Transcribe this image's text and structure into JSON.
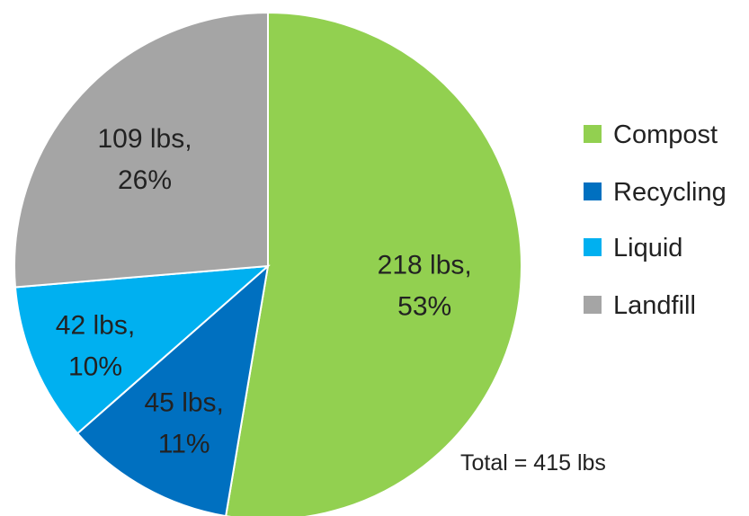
{
  "chart_data": {
    "type": "pie",
    "unit": "lbs",
    "slices": [
      {
        "name": "Compost",
        "value": 218,
        "percent": "53%",
        "label_line1": "218 lbs,",
        "label_line2": "53%",
        "color": "#92d050"
      },
      {
        "name": "Recycling",
        "value": 45,
        "percent": "11%",
        "label_line1": "45 lbs,",
        "label_line2": "11%",
        "color": "#0070c0"
      },
      {
        "name": "Liquid",
        "value": 42,
        "percent": "10%",
        "label_line1": "42 lbs,",
        "label_line2": "10%",
        "color": "#00b0f0"
      },
      {
        "name": "Landfill",
        "value": 109,
        "percent": "26%",
        "label_line1": "109 lbs,",
        "label_line2": "26%",
        "color": "#a5a5a5"
      }
    ],
    "start": "12 o'clock",
    "direction": "clockwise",
    "legend": {
      "position": "right",
      "entries": [
        "Compost",
        "Recycling",
        "Liquid",
        "Landfill"
      ]
    },
    "annotation": "Total = 415 lbs"
  }
}
